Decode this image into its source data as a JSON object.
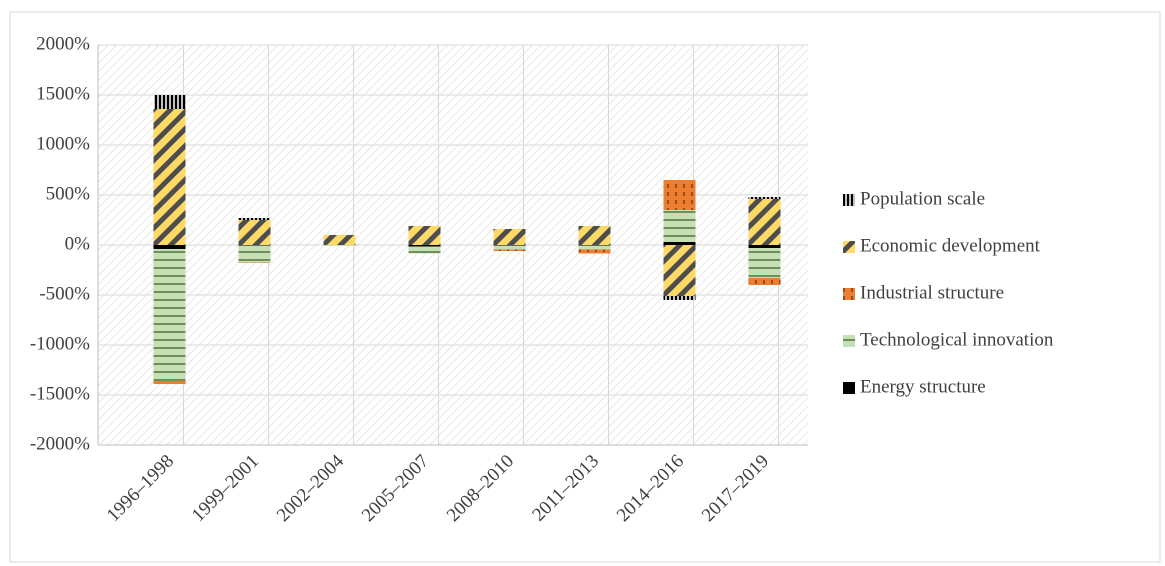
{
  "chart_data": {
    "type": "bar",
    "stacked": true,
    "categories": [
      "1996–1998",
      "1999–2001",
      "2002–2004",
      "2005–2007",
      "2008–2010",
      "2011–2013",
      "2014–2016",
      "2017–2019"
    ],
    "series": [
      {
        "name": "Energy structure",
        "color": "#000000",
        "values": [
          -40,
          -5,
          0,
          -15,
          -5,
          -5,
          30,
          -30
        ]
      },
      {
        "name": "Technological innovation",
        "color": "#c5e0b4",
        "values": [
          -1320,
          -170,
          -10,
          -70,
          -40,
          -40,
          320,
          -300
        ]
      },
      {
        "name": "Industrial structure",
        "color": "#ed7d31",
        "values": [
          -30,
          -5,
          0,
          0,
          -15,
          -40,
          300,
          -70
        ]
      },
      {
        "name": "Economic development",
        "color": "#ffd966",
        "values": [
          1360,
          250,
          100,
          190,
          160,
          190,
          -510,
          460
        ]
      },
      {
        "name": "Population scale",
        "color": "#000000",
        "values": [
          140,
          20,
          0,
          0,
          0,
          0,
          -40,
          20
        ]
      }
    ],
    "ylim": [
      -2000,
      2000
    ],
    "yticks": [
      {
        "value": 2000,
        "label": "2000%"
      },
      {
        "value": 1500,
        "label": "1500%"
      },
      {
        "value": 1000,
        "label": "1000%"
      },
      {
        "value": 500,
        "label": "500%"
      },
      {
        "value": 0,
        "label": "0%"
      },
      {
        "value": -500,
        "label": "-500%"
      },
      {
        "value": -1000,
        "label": "-1000%"
      },
      {
        "value": -1500,
        "label": "-1500%"
      },
      {
        "value": -2000,
        "label": "-2000%"
      }
    ],
    "grid": true,
    "legend": "right"
  }
}
